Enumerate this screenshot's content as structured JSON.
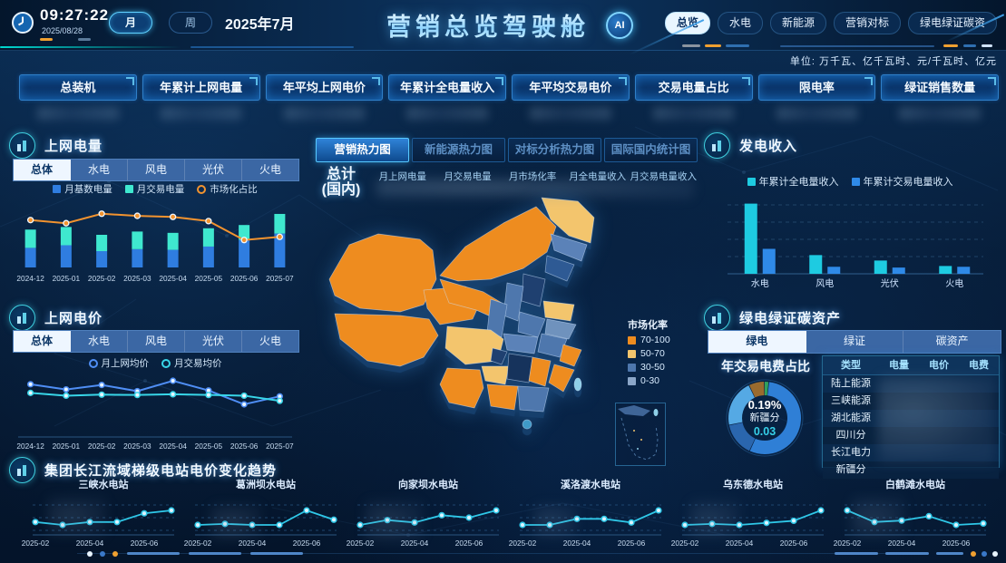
{
  "header": {
    "time": "09:27:22",
    "date": "2025/08/28",
    "period_buttons": [
      {
        "label": "月",
        "active": true
      },
      {
        "label": "周",
        "active": false
      }
    ],
    "current_period": "2025年7月",
    "title": "营销总览驾驶舱",
    "ai_label": "AI",
    "nav": [
      {
        "label": "总览",
        "active": true
      },
      {
        "label": "水电",
        "active": false
      },
      {
        "label": "新能源",
        "active": false
      },
      {
        "label": "营销对标",
        "active": false
      },
      {
        "label": "绿电绿证碳资",
        "active": false
      }
    ]
  },
  "units_note": "单位: 万千瓦、亿千瓦时、元/千瓦时、亿元",
  "kpis": [
    "总装机",
    "年累计上网电量",
    "年平均上网电价",
    "年累计全电量收入",
    "年平均交易电价",
    "交易电量占比",
    "限电率",
    "绿证销售数量"
  ],
  "panels": {
    "grid_power": {
      "title": "上网电量",
      "tabs": [
        "总体",
        "水电",
        "风电",
        "光伏",
        "火电"
      ],
      "active_tab": "总体"
    },
    "grid_price": {
      "title": "上网电价",
      "tabs": [
        "总体",
        "水电",
        "风电",
        "光伏",
        "火电"
      ],
      "active_tab": "总体"
    },
    "heatmap": {
      "tabs": [
        "营销热力图",
        "新能源热力图",
        "对标分析热力图",
        "国际国内统计图"
      ],
      "active_tab": "营销热力图",
      "total_title": "总计",
      "total_sub": "(国内)",
      "metrics": [
        "月上网电量",
        "月交易电量",
        "月市场化率",
        "月全电量收入",
        "月交易电量收入"
      ],
      "legend_title": "市场化率",
      "legend": [
        {
          "label": "70-100",
          "color": "#ee8c1f"
        },
        {
          "label": "50-70",
          "color": "#f3c56d"
        },
        {
          "label": "30-50",
          "color": "#4e77ad"
        },
        {
          "label": "0-30",
          "color": "#8ba6c8"
        }
      ]
    },
    "gen_income": {
      "title": "发电收入"
    },
    "green": {
      "title": "绿电绿证碳资产",
      "tabs": [
        "绿电",
        "绿证",
        "碳资产"
      ],
      "active_tab": "绿电",
      "donut_title": "年交易电费占比",
      "center": {
        "pct": "0.19%",
        "name": "新疆分",
        "value": "0.03"
      },
      "table_headers": [
        "类型",
        "电量",
        "电价",
        "电费"
      ],
      "table_rows": [
        "陆上能源",
        "三峡能源",
        "湖北能源",
        "四川分",
        "长江电力",
        "新疆分"
      ]
    },
    "trend": {
      "title": "集团长江流域梯级电站电价变化趋势"
    }
  },
  "chart_data": [
    {
      "id": "grid-power",
      "type": "bar",
      "stacked": true,
      "categories": [
        "2024-12",
        "2025-01",
        "2025-02",
        "2025-03",
        "2025-04",
        "2025-05",
        "2025-06",
        "2025-07"
      ],
      "series": [
        {
          "name": "月基数电量",
          "color": "#2f7de0",
          "values": [
            30,
            34,
            25,
            28,
            27,
            32,
            42,
            52
          ]
        },
        {
          "name": "月交易电量",
          "color": "#3fe8cf",
          "values": [
            28,
            28,
            25,
            27,
            26,
            28,
            23,
            30
          ]
        }
      ],
      "line_series": {
        "name": "市场化占比",
        "color": "#f2932f",
        "values": [
          83,
          80,
          89,
          87,
          86,
          82,
          64,
          67
        ]
      },
      "ylim": [
        0,
        100
      ],
      "legend_position": "top"
    },
    {
      "id": "grid-price",
      "type": "line",
      "categories": [
        "2024-12",
        "2025-01",
        "2025-02",
        "2025-03",
        "2025-04",
        "2025-05",
        "2025-06",
        "2025-07"
      ],
      "series": [
        {
          "name": "月上网均价",
          "color": "#4f8ef5",
          "values": [
            0.32,
            0.305,
            0.318,
            0.3,
            0.33,
            0.302,
            0.262,
            0.285
          ]
        },
        {
          "name": "月交易均价",
          "color": "#38d6e8",
          "values": [
            0.295,
            0.287,
            0.29,
            0.289,
            0.291,
            0.289,
            0.287,
            0.272
          ]
        }
      ],
      "legend_position": "top"
    },
    {
      "id": "gen-income",
      "type": "bar",
      "grouped": true,
      "grid": true,
      "categories": [
        "水电",
        "风电",
        "光伏",
        "火电"
      ],
      "series": [
        {
          "name": "年累计全电量收入",
          "color": "#1ecbe1",
          "values": [
            90,
            24,
            17,
            10
          ]
        },
        {
          "name": "年累计交易电量收入",
          "color": "#2f8ae8",
          "values": [
            32,
            9,
            8,
            9
          ]
        }
      ],
      "ylim": [
        0,
        100
      ],
      "legend_position": "top"
    },
    {
      "id": "green-donut",
      "type": "pie",
      "center": {
        "pct": "0.19%",
        "name": "新疆分",
        "value": "0.03"
      },
      "slices": [
        {
          "value": 2,
          "color": "#2fa05e"
        },
        {
          "value": 55,
          "color": "#2f7fd6"
        },
        {
          "value": 15,
          "color": "#2a66ae"
        },
        {
          "value": 21,
          "color": "#55a9e4"
        },
        {
          "value": 7,
          "color": "#9a6b2e"
        }
      ]
    },
    {
      "id": "station-1",
      "type": "mini",
      "title": "三峡水电站",
      "color": "#2fc8e8",
      "x": [
        "2025-02",
        "2025-03",
        "2025-04",
        "2025-05",
        "2025-06",
        "2025-07"
      ],
      "xticks": [
        "2025-02",
        "2025-04",
        "2025-06"
      ],
      "values": [
        0.283,
        0.282,
        0.283,
        0.283,
        0.286,
        0.287
      ]
    },
    {
      "id": "station-2",
      "type": "mini",
      "title": "葛洲坝水电站",
      "color": "#2fc8e8",
      "x": [
        "2025-02",
        "2025-03",
        "2025-04",
        "2025-05",
        "2025-06",
        "2025-07"
      ],
      "xticks": [
        "2025-02",
        "2025-04",
        "2025-06"
      ],
      "values": [
        0.258,
        0.259,
        0.258,
        0.258,
        0.272,
        0.263
      ]
    },
    {
      "id": "station-3",
      "type": "mini",
      "title": "向家坝水电站",
      "color": "#2fc8e8",
      "x": [
        "2025-02",
        "2025-03",
        "2025-04",
        "2025-05",
        "2025-06",
        "2025-07"
      ],
      "xticks": [
        "2025-02",
        "2025-04",
        "2025-06"
      ],
      "values": [
        0.268,
        0.27,
        0.269,
        0.272,
        0.271,
        0.274
      ]
    },
    {
      "id": "station-4",
      "type": "mini",
      "title": "溪洛渡水电站",
      "color": "#2fc8e8",
      "x": [
        "2025-02",
        "2025-03",
        "2025-04",
        "2025-05",
        "2025-06",
        "2025-07"
      ],
      "xticks": [
        "2025-02",
        "2025-04",
        "2025-06"
      ],
      "values": [
        0.276,
        0.276,
        0.281,
        0.281,
        0.278,
        0.288
      ]
    },
    {
      "id": "station-5",
      "type": "mini",
      "title": "乌东德水电站",
      "color": "#2fc8e8",
      "x": [
        "2025-02",
        "2025-03",
        "2025-04",
        "2025-05",
        "2025-06",
        "2025-07"
      ],
      "xticks": [
        "2025-02",
        "2025-04",
        "2025-06"
      ],
      "values": [
        0.262,
        0.263,
        0.262,
        0.264,
        0.266,
        0.276
      ]
    },
    {
      "id": "station-6",
      "type": "mini",
      "title": "白鹤滩水电站",
      "color": "#2fc8e8",
      "x": [
        "2025-02",
        "2025-03",
        "2025-04",
        "2025-05",
        "2025-06",
        "2025-07"
      ],
      "xticks": [
        "2025-02",
        "2025-04",
        "2025-06"
      ],
      "values": [
        0.298,
        0.29,
        0.291,
        0.294,
        0.288,
        0.289
      ]
    }
  ],
  "colors": {
    "accent_cyan": "#35d0e8",
    "accent_orange": "#f0a030",
    "tab_active_bg": "#eef6ff",
    "panel_title": "#f0f8ff"
  }
}
